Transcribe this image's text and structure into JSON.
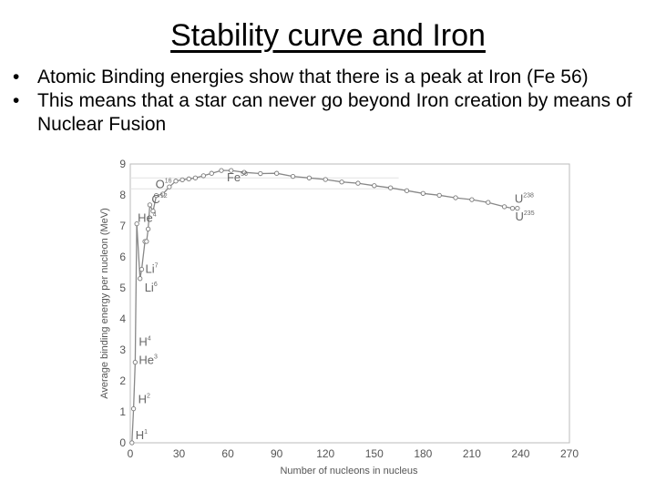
{
  "slide": {
    "title": "Stability curve and Iron",
    "bullets": [
      "Atomic Binding energies show that there is a peak at Iron (Fe 56)",
      "This means that a star can never go beyond Iron creation by means of Nuclear Fusion"
    ]
  },
  "chart_data": {
    "type": "line",
    "title": "",
    "xlabel": "Number of nucleons in nucleus",
    "ylabel": "Average binding energy per nucleon (MeV)",
    "xlim": [
      0,
      270
    ],
    "ylim": [
      0,
      9
    ],
    "x_ticks": [
      "0",
      "30",
      "60",
      "90",
      "120",
      "150",
      "180",
      "210",
      "240",
      "270"
    ],
    "y_ticks": [
      "0",
      "1",
      "2",
      "3",
      "4",
      "5",
      "6",
      "7",
      "8",
      "9"
    ],
    "grid": false,
    "series": [
      {
        "points": [
          [
            1,
            0
          ],
          [
            2,
            1.1
          ],
          [
            3,
            2.6
          ],
          [
            4,
            7.07
          ],
          [
            6,
            5.3
          ],
          [
            7,
            5.6
          ],
          [
            9,
            6.5
          ],
          [
            10,
            6.5
          ],
          [
            11,
            6.9
          ],
          [
            12,
            7.68
          ],
          [
            14,
            7.48
          ],
          [
            16,
            7.98
          ],
          [
            20,
            8.03
          ],
          [
            24,
            8.26
          ],
          [
            28,
            8.45
          ],
          [
            32,
            8.49
          ],
          [
            36,
            8.52
          ],
          [
            40,
            8.55
          ],
          [
            45,
            8.62
          ],
          [
            50,
            8.7
          ],
          [
            56,
            8.79
          ],
          [
            62,
            8.79
          ],
          [
            70,
            8.73
          ],
          [
            80,
            8.69
          ],
          [
            90,
            8.7
          ],
          [
            100,
            8.6
          ],
          [
            110,
            8.55
          ],
          [
            120,
            8.5
          ],
          [
            130,
            8.42
          ],
          [
            140,
            8.38
          ],
          [
            150,
            8.3
          ],
          [
            160,
            8.23
          ],
          [
            170,
            8.14
          ],
          [
            180,
            8.05
          ],
          [
            190,
            7.99
          ],
          [
            200,
            7.91
          ],
          [
            210,
            7.85
          ],
          [
            220,
            7.76
          ],
          [
            230,
            7.62
          ],
          [
            235,
            7.57
          ],
          [
            238,
            7.57
          ]
        ],
        "color": "#888888"
      }
    ],
    "annotations": [
      {
        "base": "H",
        "sup": "1",
        "x": 1,
        "y": 0
      },
      {
        "base": "H",
        "sup": "2",
        "x": 2,
        "y": 1.1
      },
      {
        "base": "He",
        "sup": "3",
        "x": 3,
        "y": 2.6
      },
      {
        "base": "H",
        "sup": "4",
        "x": 3,
        "y": 2.9
      },
      {
        "base": "He",
        "sup": "4",
        "x": 4,
        "y": 7.07
      },
      {
        "base": "Li",
        "sup": "7",
        "x": 7,
        "y": 5.6
      },
      {
        "base": "Li",
        "sup": "6",
        "x": 6,
        "y": 5.3
      },
      {
        "base": "C",
        "sup": "12",
        "x": 12,
        "y": 7.68
      },
      {
        "base": "O",
        "sup": "16",
        "x": 16,
        "y": 7.98
      },
      {
        "base": "Fe",
        "sup": "56",
        "x": 56,
        "y": 8.79
      },
      {
        "base": "U",
        "sup": "238",
        "x": 238,
        "y": 7.57
      },
      {
        "base": "U",
        "sup": "235",
        "x": 235,
        "y": 7.59
      }
    ]
  }
}
